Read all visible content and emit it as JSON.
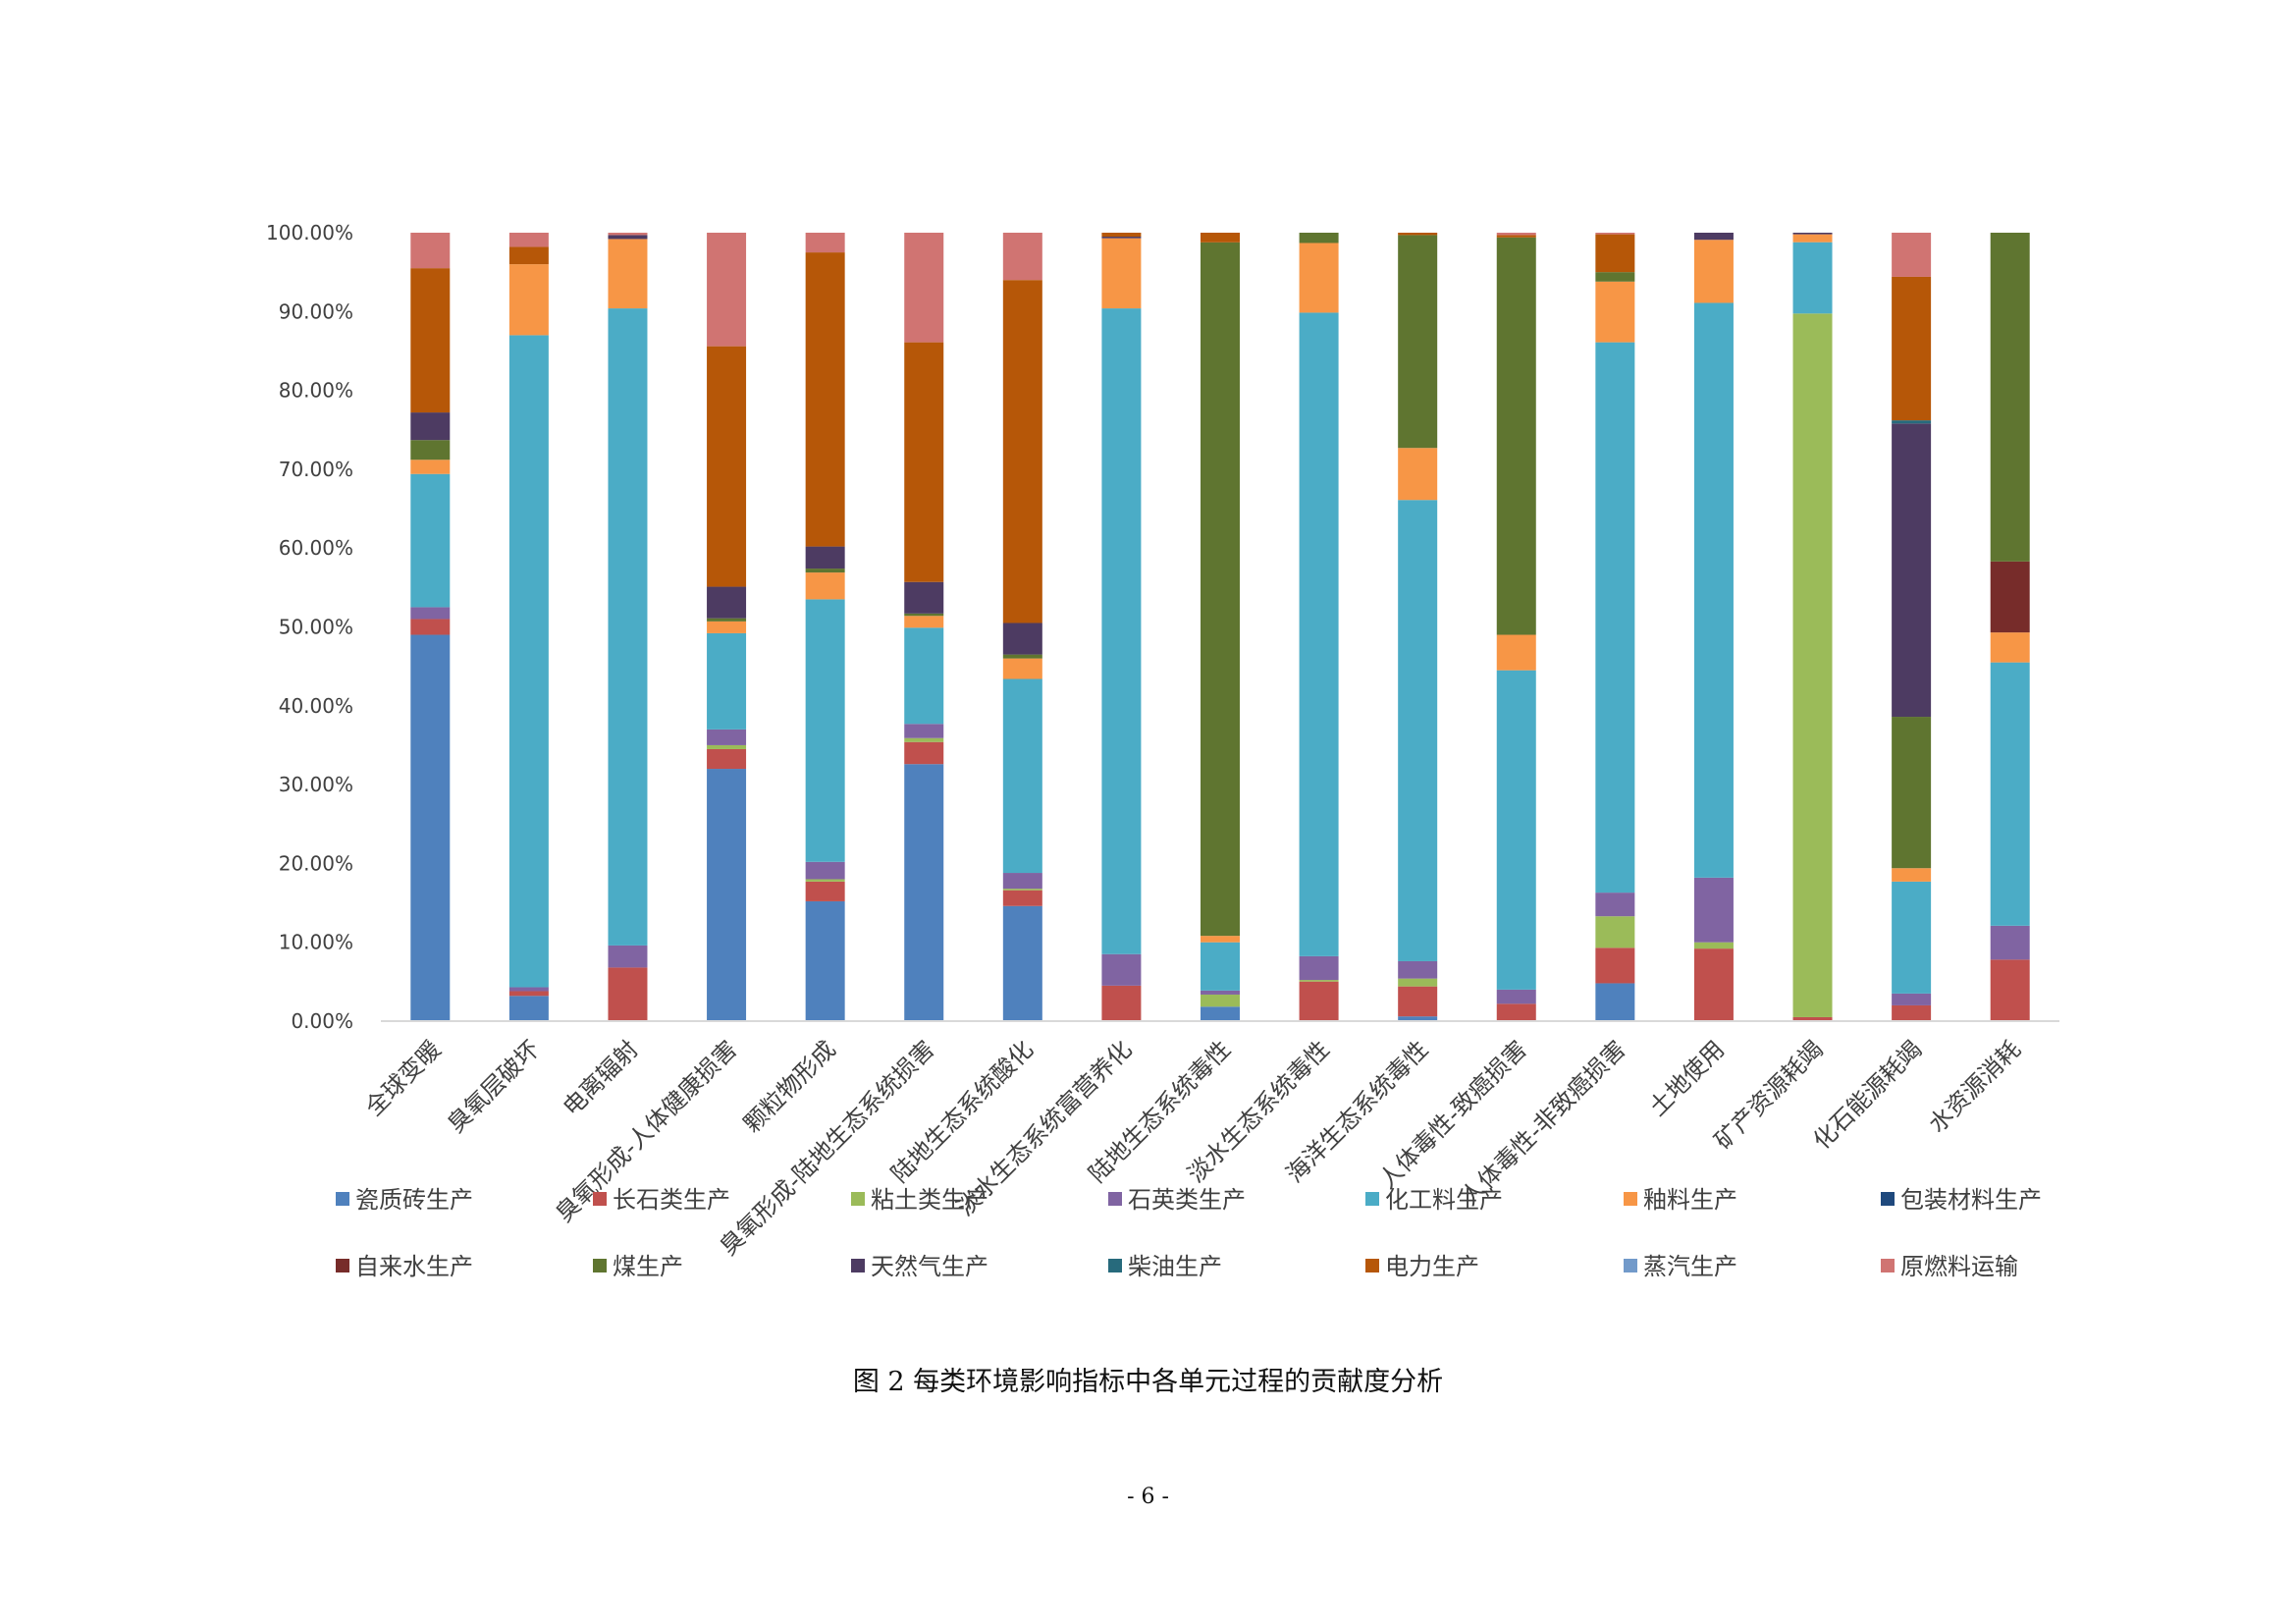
{
  "caption": "图 2  每类环境影响指标中各单元过程的贡献度分析",
  "page_number": "- 6 -",
  "chart_data": {
    "type": "bar",
    "stacked": true,
    "percent_stacked": true,
    "title": "",
    "xlabel": "",
    "ylabel": "",
    "ylim": [
      0,
      100
    ],
    "y_tick_labels": [
      "0.00%",
      "10.00%",
      "20.00%",
      "30.00%",
      "40.00%",
      "50.00%",
      "60.00%",
      "70.00%",
      "80.00%",
      "90.00%",
      "100.00%"
    ],
    "grid": false,
    "legend_position": "bottom",
    "categories": [
      "全球变暖",
      "臭氧层破坏",
      "电离辐射",
      "臭氧形成-人体健康损害",
      "颗粒物形成",
      "臭氧形成-陆地生态系统损害",
      "陆地生态系统酸化",
      "淡水生态系统富营养化",
      "陆地生态系统毒性",
      "淡水生态系统毒性",
      "海洋生态系统毒性",
      "人体毒性-致癌损害",
      "人体毒性-非致癌损害",
      "土地使用",
      "矿产资源耗竭",
      "化石能源耗竭",
      "水资源消耗"
    ],
    "series": [
      {
        "name": "瓷质砖生产",
        "color": "#4F81BD",
        "values": [
          49,
          3.2,
          0,
          32,
          15.2,
          32.6,
          14.6,
          0,
          1.8,
          0,
          0.6,
          0,
          4.8,
          0,
          0,
          0,
          0
        ]
      },
      {
        "name": "长石类生产",
        "color": "#C0504D",
        "values": [
          2,
          0.6,
          6.8,
          2.5,
          2.5,
          2.8,
          2,
          4.5,
          0,
          5,
          3.8,
          2.2,
          4.5,
          9.2,
          0.5,
          2,
          7.8
        ]
      },
      {
        "name": "粘土类生产",
        "color": "#9BBB59",
        "values": [
          0,
          0,
          0,
          0.5,
          0.3,
          0.5,
          0.2,
          0,
          1.5,
          0.2,
          1,
          0,
          4,
          0.8,
          88.8,
          0,
          0
        ]
      },
      {
        "name": "石英类生产",
        "color": "#8064A2",
        "values": [
          1.5,
          0.5,
          2.8,
          2,
          2.2,
          1.8,
          2,
          4,
          0.5,
          3,
          2.2,
          1.8,
          3,
          8.2,
          0,
          1.5,
          4.3
        ]
      },
      {
        "name": "化工料生产",
        "color": "#4BACC6",
        "values": [
          16.9,
          82.7,
          80.8,
          12.2,
          33.3,
          12.2,
          24.6,
          81.9,
          6,
          81.3,
          58.5,
          40.5,
          69.8,
          72.9,
          9,
          14.2,
          33.4
        ]
      },
      {
        "name": "釉料生产",
        "color": "#F79646",
        "values": [
          1.8,
          9,
          8.8,
          1.5,
          3.4,
          1.5,
          2.6,
          8.9,
          0.8,
          8.8,
          6.6,
          4.5,
          7.7,
          8,
          1,
          1.7,
          3.8
        ]
      },
      {
        "name": "包装材料生产",
        "color": "#1F497D",
        "values": [
          0,
          0,
          0,
          0,
          0,
          0,
          0,
          0,
          0,
          0,
          0,
          0,
          0,
          0,
          0,
          0,
          0
        ]
      },
      {
        "name": "自来水生产",
        "color": "#772C2A",
        "values": [
          0,
          0,
          0,
          0,
          0,
          0,
          0,
          0,
          0,
          0,
          0,
          0,
          0,
          0,
          0,
          0,
          9
        ]
      },
      {
        "name": "煤生产",
        "color": "#5F7530",
        "values": [
          2.5,
          0,
          0,
          0.4,
          0.5,
          0.3,
          0.5,
          0,
          86.2,
          1.3,
          27,
          50.4,
          1.2,
          0,
          0,
          19.2,
          41.7
        ]
      },
      {
        "name": "天然气生产",
        "color": "#4D3B62",
        "values": [
          3.5,
          0,
          0.5,
          4,
          2.8,
          4,
          4,
          0.2,
          0,
          0,
          0,
          0,
          0,
          0.9,
          0.2,
          37.2,
          0
        ]
      },
      {
        "name": "柴油生产",
        "color": "#276A7C",
        "values": [
          0,
          0,
          0,
          0,
          0,
          0,
          0,
          0,
          0,
          0,
          0,
          0,
          0,
          0,
          0,
          0.4,
          0
        ]
      },
      {
        "name": "电力生产",
        "color": "#B65708",
        "values": [
          18.3,
          2.2,
          0,
          30.5,
          37.3,
          30.4,
          43.5,
          0.5,
          1.2,
          0,
          0.3,
          0.3,
          4.8,
          0,
          0,
          18.2,
          0
        ]
      },
      {
        "name": "蒸汽生产",
        "color": "#729ACA",
        "values": [
          0,
          0,
          0,
          0,
          0,
          0,
          0,
          0,
          0,
          0,
          0,
          0,
          0,
          0,
          0,
          0,
          0
        ]
      },
      {
        "name": "原燃料运输",
        "color": "#D07472",
        "values": [
          4.5,
          1.8,
          0.3,
          14.4,
          2.5,
          13.9,
          6,
          0,
          0,
          0,
          0,
          0.3,
          0.2,
          0,
          0,
          5.6,
          0
        ]
      }
    ]
  }
}
